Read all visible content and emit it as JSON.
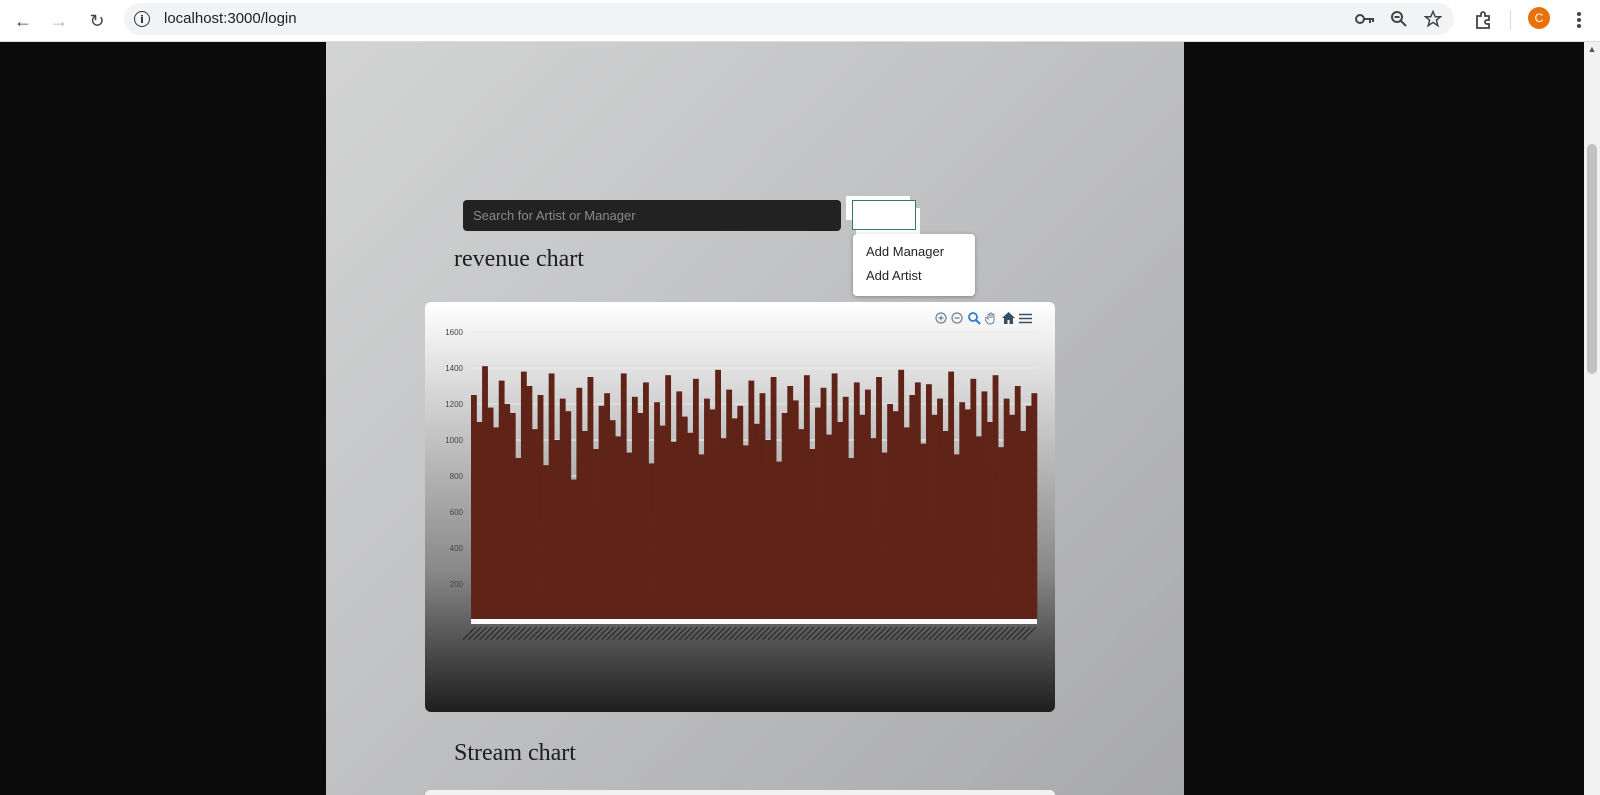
{
  "browser": {
    "url": "localhost:3000/login",
    "avatar_letter": "C"
  },
  "search": {
    "placeholder": "Search for Artist or Manager"
  },
  "add_menu": {
    "items": [
      "Add Manager",
      "Add Artist"
    ]
  },
  "revenue_section": {
    "title": "revenue chart"
  },
  "stream_section": {
    "title": "Stream chart"
  },
  "chart_data": {
    "type": "bar",
    "title": "revenue chart",
    "xlabel": "",
    "ylabel": "",
    "ylim": [
      0,
      1600
    ],
    "y_ticks": [
      "1600",
      "1400",
      "1200",
      "1000",
      "800",
      "600",
      "400",
      "200"
    ],
    "bar_color": "#5f2318",
    "toolbar": [
      "zoom-in",
      "zoom-out",
      "selection-zoom",
      "pan",
      "reset-home",
      "menu"
    ],
    "values": [
      1250,
      1100,
      1410,
      1180,
      1070,
      1330,
      1200,
      1150,
      900,
      1380,
      1300,
      1060,
      1250,
      860,
      1370,
      1000,
      1230,
      1160,
      780,
      1290,
      1050,
      1350,
      950,
      1190,
      1260,
      1110,
      1020,
      1370,
      930,
      1240,
      1150,
      1320,
      870,
      1210,
      1080,
      1360,
      990,
      1270,
      1130,
      1040,
      1340,
      920,
      1230,
      1170,
      1390,
      1010,
      1280,
      1120,
      1190,
      970,
      1330,
      1090,
      1260,
      1000,
      1350,
      880,
      1150,
      1300,
      1220,
      1060,
      1360,
      950,
      1180,
      1290,
      1030,
      1370,
      1100,
      1240,
      900,
      1320,
      1140,
      1280,
      1010,
      1350,
      930,
      1200,
      1160,
      1390,
      1070,
      1250,
      1320,
      980,
      1310,
      1140,
      1230,
      1050,
      1380,
      920,
      1210,
      1170,
      1340,
      1020,
      1270,
      1100,
      1360,
      960,
      1230,
      1140,
      1300,
      1050,
      1190,
      1260
    ]
  }
}
